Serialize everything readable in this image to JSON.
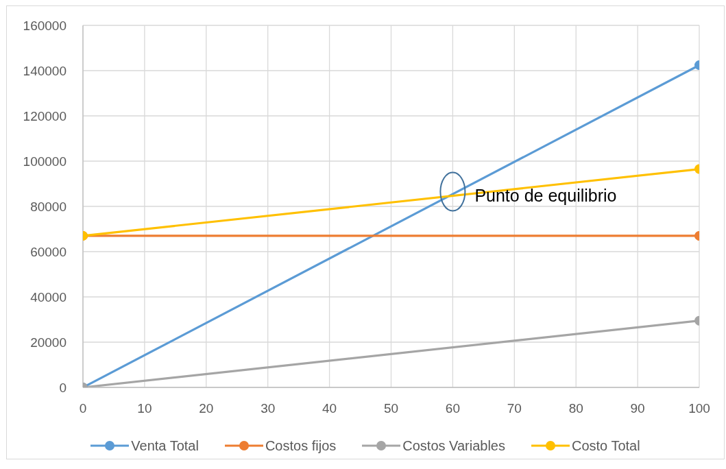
{
  "chart_data": {
    "type": "line",
    "x": [
      0,
      100
    ],
    "xlim": [
      0,
      100
    ],
    "xticks": [
      0,
      10,
      20,
      30,
      40,
      50,
      60,
      70,
      80,
      90,
      100
    ],
    "ylim": [
      0,
      160000
    ],
    "yticks": [
      0,
      20000,
      40000,
      60000,
      80000,
      100000,
      120000,
      140000,
      160000
    ],
    "series": [
      {
        "name": "Venta Total",
        "color": "#5b9bd5",
        "values": [
          0,
          142400
        ]
      },
      {
        "name": "Costos fijos",
        "color": "#ed7d31",
        "values": [
          67000,
          67000
        ]
      },
      {
        "name": "Costos Variables",
        "color": "#a5a5a5",
        "values": [
          0,
          29500
        ]
      },
      {
        "name": "Costo Total",
        "color": "#ffc000",
        "values": [
          67000,
          96500
        ]
      }
    ],
    "marker": "circle",
    "line_style": "solid",
    "grid": true,
    "legend": "bottom",
    "annotations": [
      {
        "text": "Punto de equilibrio",
        "x": 60,
        "y": 86500
      }
    ]
  }
}
